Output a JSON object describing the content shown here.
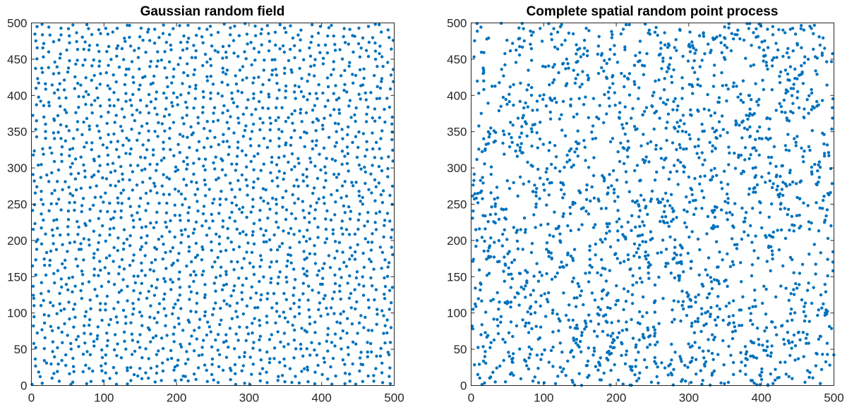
{
  "chart_data": [
    {
      "type": "scatter",
      "title": "Gaussian random field",
      "xlim": [
        0,
        500
      ],
      "ylim": [
        0,
        500
      ],
      "xticks": [
        0,
        100,
        200,
        300,
        400,
        500
      ],
      "yticks": [
        0,
        50,
        100,
        150,
        200,
        250,
        300,
        350,
        400,
        450,
        500
      ],
      "marker_color": "#0072BD",
      "point_pattern": "regular (evenly spaced, inhibition)",
      "approx_point_count": 2000,
      "seed": 7,
      "grid": false,
      "box": true
    },
    {
      "type": "scatter",
      "title": "Complete spatial random point process",
      "xlim": [
        0,
        500
      ],
      "ylim": [
        0,
        500
      ],
      "xticks": [
        0,
        100,
        200,
        300,
        400,
        500
      ],
      "yticks": [
        0,
        50,
        100,
        150,
        200,
        250,
        300,
        350,
        400,
        450,
        500
      ],
      "marker_color": "#0072BD",
      "point_pattern": "uniform random (Poisson)",
      "approx_point_count": 2000,
      "seed": 13,
      "grid": false,
      "box": true
    }
  ]
}
